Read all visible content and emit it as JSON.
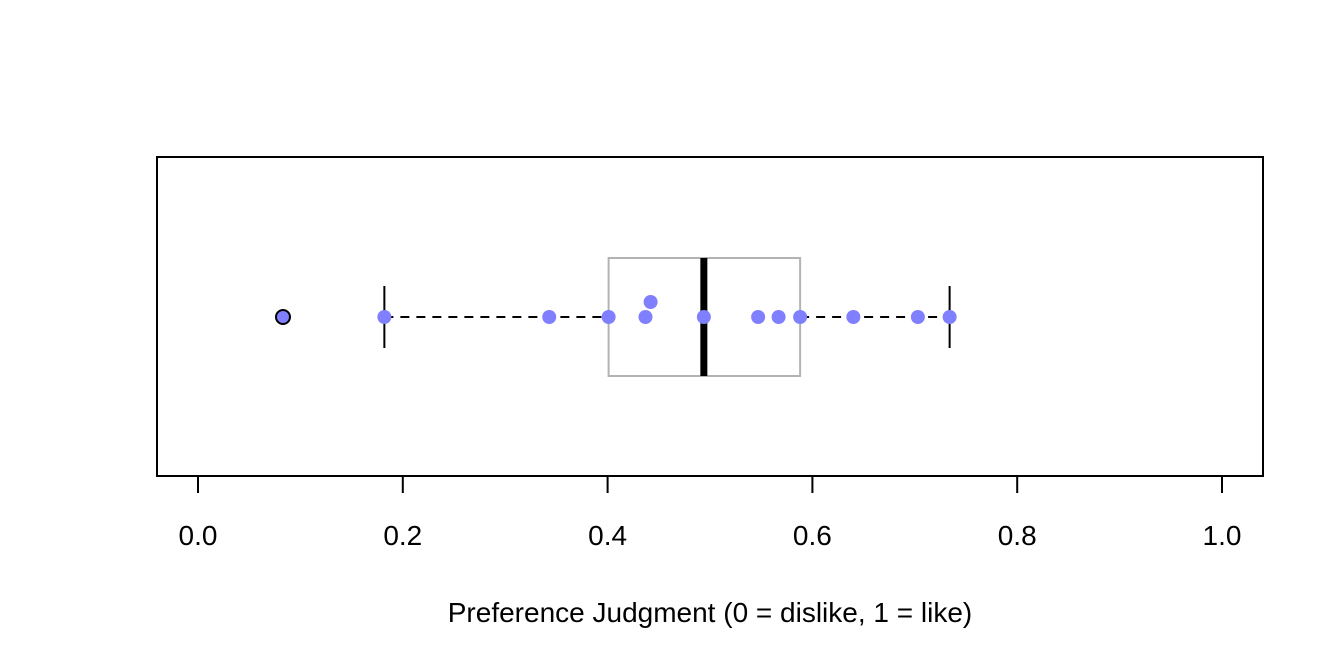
{
  "chart_data": {
    "type": "boxplot",
    "orientation": "horizontal",
    "title": "",
    "xlabel": "Preference Judgment (0 = dislike, 1 = like)",
    "ylabel": "",
    "xlim": [
      0,
      1
    ],
    "x_ticks": [
      0.0,
      0.2,
      0.4,
      0.6,
      0.8,
      1.0
    ],
    "x_tick_labels": [
      "0.0",
      "0.2",
      "0.4",
      "0.6",
      "0.8",
      "1.0"
    ],
    "grid": false,
    "box": {
      "whisker_low": 0.182,
      "q1": 0.401,
      "median": 0.494,
      "q3": 0.588,
      "whisker_high": 0.734,
      "outliers": [
        0.083
      ]
    },
    "points": [
      {
        "x": 0.182,
        "jitter": 0
      },
      {
        "x": 0.343,
        "jitter": 0
      },
      {
        "x": 0.401,
        "jitter": 0
      },
      {
        "x": 0.437,
        "jitter": 0
      },
      {
        "x": 0.442,
        "jitter": 1
      },
      {
        "x": 0.494,
        "jitter": 0
      },
      {
        "x": 0.547,
        "jitter": 0
      },
      {
        "x": 0.567,
        "jitter": 0
      },
      {
        "x": 0.588,
        "jitter": 0
      },
      {
        "x": 0.64,
        "jitter": 0
      },
      {
        "x": 0.703,
        "jitter": 0
      },
      {
        "x": 0.734,
        "jitter": 0
      }
    ],
    "colors": {
      "points": "#8080ff",
      "box_border": "#b3b3b3",
      "median": "#000000",
      "whisker": "#000000",
      "outlier_fill": "#8080ff",
      "outlier_stroke": "#000000",
      "frame": "#000000"
    }
  }
}
